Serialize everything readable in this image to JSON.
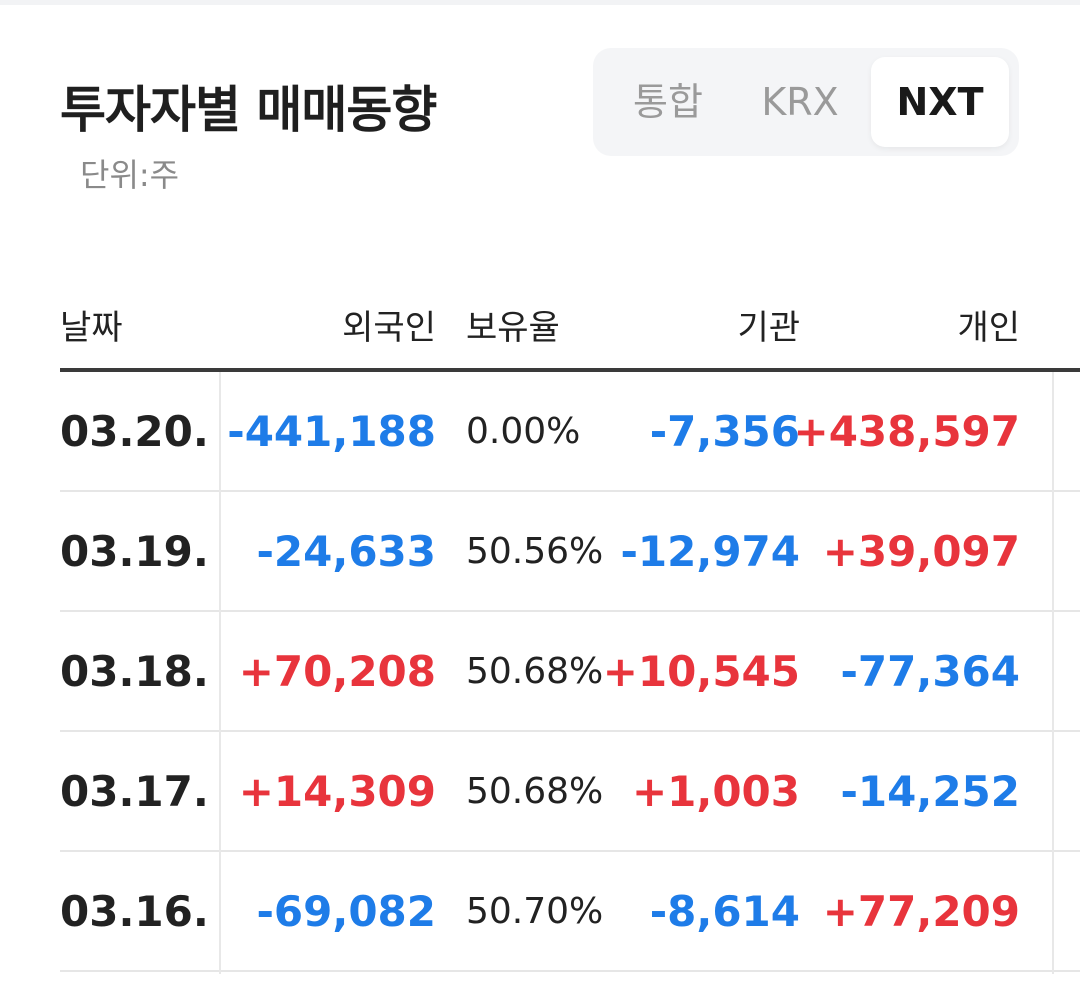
{
  "header": {
    "title": "투자자별 매매동향",
    "unit": "단위:주"
  },
  "tabs": [
    {
      "label": "통합",
      "active": false
    },
    {
      "label": "KRX",
      "active": false
    },
    {
      "label": "NXT",
      "active": true
    }
  ],
  "table": {
    "columns": {
      "date": "날짜",
      "foreign": "외국인",
      "holding": "보유율",
      "institution": "기관",
      "individual": "개인"
    },
    "rows": [
      {
        "date": "03.20.",
        "foreign": "-441,188",
        "holding": "0.00%",
        "institution": "-7,356",
        "individual": "+438,597"
      },
      {
        "date": "03.19.",
        "foreign": "-24,633",
        "holding": "50.56%",
        "institution": "-12,974",
        "individual": "+39,097"
      },
      {
        "date": "03.18.",
        "foreign": "+70,208",
        "holding": "50.68%",
        "institution": "+10,545",
        "individual": "-77,364"
      },
      {
        "date": "03.17.",
        "foreign": "+14,309",
        "holding": "50.68%",
        "institution": "+1,003",
        "individual": "-14,252"
      },
      {
        "date": "03.16.",
        "foreign": "-69,082",
        "holding": "50.70%",
        "institution": "-8,614",
        "individual": "+77,209"
      }
    ]
  },
  "colors": {
    "positive": "#e8343c",
    "negative": "#1e7ce8"
  }
}
